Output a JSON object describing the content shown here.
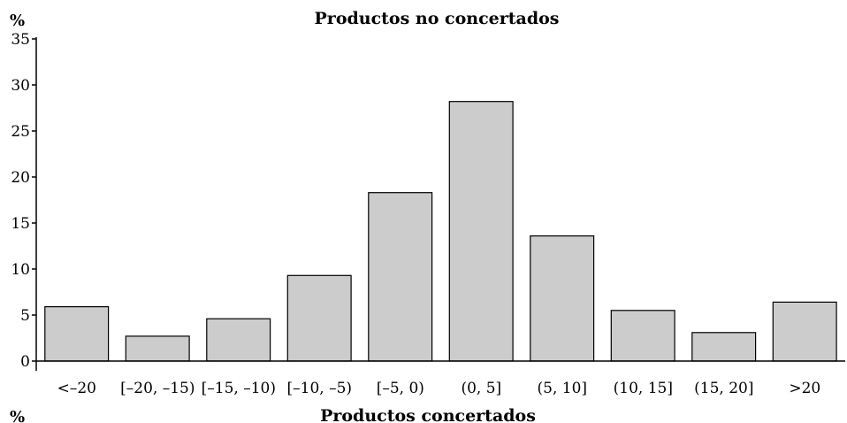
{
  "chart_data": {
    "type": "bar",
    "title": "Productos no concertados",
    "next_title": "Productos concertados",
    "y_unit_label": "%",
    "next_y_unit_label": "%",
    "categories": [
      "<–20",
      "[–20, –15)",
      "[–15, –10)",
      "[–10, –5)",
      "[–5, 0)",
      "(0, 5]",
      "(5, 10]",
      "(10, 15]",
      "(15, 20]",
      ">20"
    ],
    "values": [
      5.9,
      2.7,
      4.6,
      9.3,
      18.3,
      28.2,
      13.6,
      5.5,
      3.1,
      6.4
    ],
    "ylim": [
      0,
      35
    ],
    "yticks": [
      "0",
      "5",
      "10",
      "15",
      "20",
      "25",
      "30",
      "35"
    ],
    "xlabel": "",
    "ylabel": "",
    "grid": false,
    "colors": {
      "bar_fill": "#cccccc",
      "bar_stroke": "#000000",
      "axis": "#000000"
    }
  }
}
